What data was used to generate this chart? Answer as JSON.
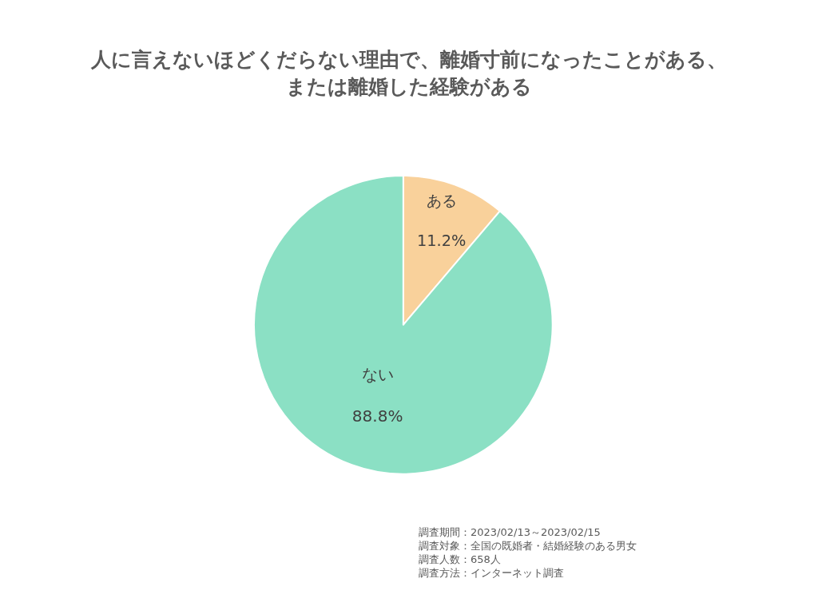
{
  "chart_data": {
    "type": "pie",
    "title": "人に言えないほどくだらない理由で、離婚寸前になったことがある、または離婚した経験がある",
    "categories": [
      "ある",
      "ない"
    ],
    "values": [
      11.2,
      88.8
    ],
    "colors": [
      "#f9d19b",
      "#8be0c4"
    ],
    "value_labels": [
      "11.2%",
      "88.8%"
    ],
    "annotations": [
      "調査期間：2023/02/13～2023/02/15",
      "調査対象：全国の既婚者・結婚経験のある男女",
      "調査人数：658人",
      "調査方法：インターネット調査"
    ]
  }
}
